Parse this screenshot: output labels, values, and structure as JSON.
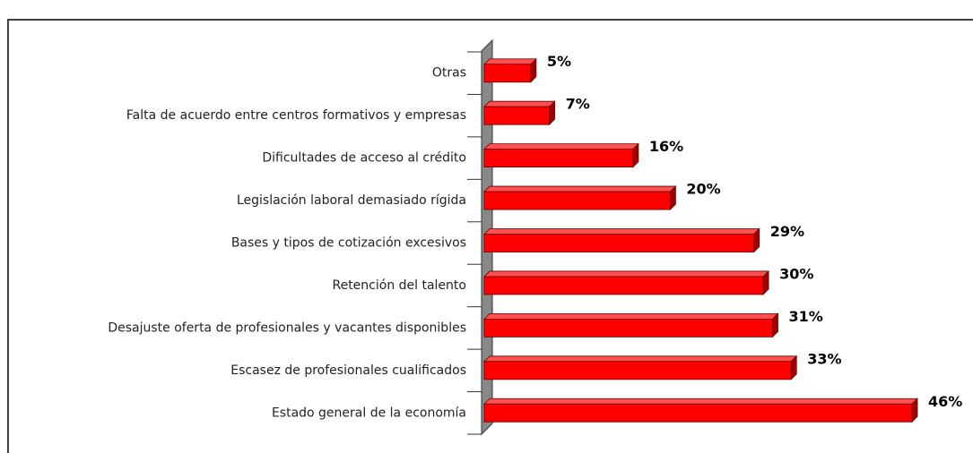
{
  "chart_data": {
    "type": "bar3d",
    "orientation": "horizontal",
    "categories": [
      "Otras",
      "Falta de acuerdo entre centros formativos y empresas",
      "Dificultades de acceso al crédito",
      "Legislación laboral demasiado rígida",
      "Bases y tipos de cotización excesivos",
      "Retención del talento",
      "Desajuste oferta de profesionales y vacantes disponibles",
      "Escasez de profesionales cualificados",
      "Estado general de la economía"
    ],
    "values": [
      5,
      7,
      16,
      20,
      29,
      30,
      31,
      33,
      46
    ],
    "value_labels": [
      "5%",
      "7%",
      "16%",
      "20%",
      "29%",
      "30%",
      "31%",
      "33%",
      "46%"
    ],
    "color": "#ff0000"
  }
}
